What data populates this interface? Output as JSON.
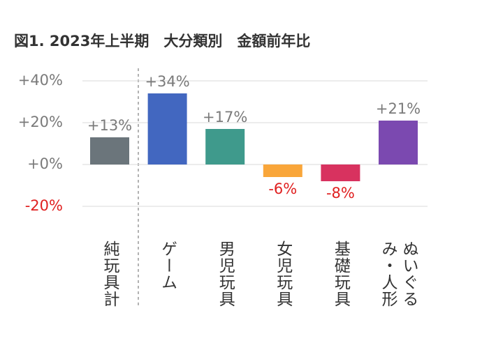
{
  "chart_data": {
    "type": "bar",
    "title": "図1. 2023年上半期　大分類別　金額前年比",
    "categories": [
      "純玩具計",
      "ゲーム",
      "男児玩具",
      "女児玩具",
      "基礎玩具",
      "ぬいぐるみ・人形"
    ],
    "values": [
      13,
      34,
      17,
      -6,
      -8,
      21
    ],
    "value_labels": [
      "+13%",
      "+34%",
      "+17%",
      "-6%",
      "-8%",
      "+21%"
    ],
    "colors": [
      "#6b757b",
      "#4267c0",
      "#3f9a8c",
      "#f9a63a",
      "#d8325f",
      "#7b49b0"
    ],
    "ylim": [
      -20,
      40
    ],
    "yticks": [
      {
        "value": -20,
        "label": "-20%"
      },
      {
        "value": 0,
        "label": "+0%"
      },
      {
        "value": 20,
        "label": "+20%"
      },
      {
        "value": 40,
        "label": "+40%"
      }
    ],
    "grid": true
  }
}
